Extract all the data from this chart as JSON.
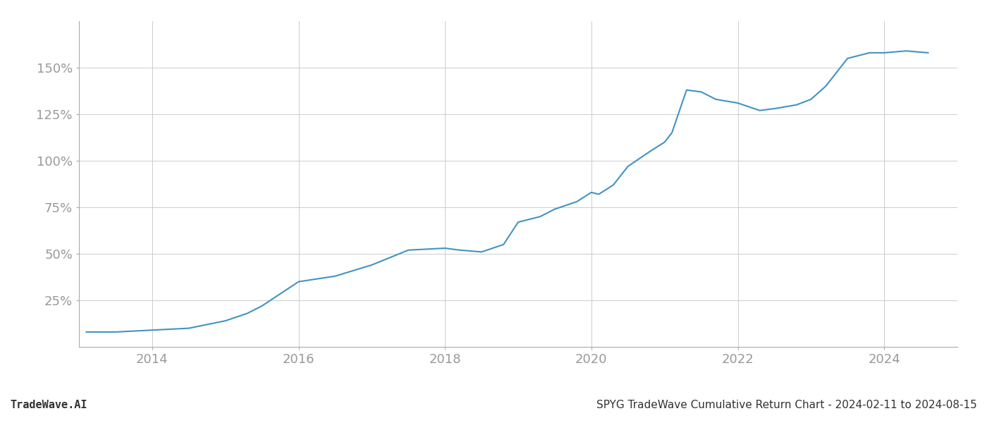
{
  "footer_left": "TradeWave.AI",
  "footer_right": "SPYG TradeWave Cumulative Return Chart - 2024-02-11 to 2024-08-15",
  "line_color": "#4393c3",
  "line_width": 1.5,
  "background_color": "#ffffff",
  "grid_color": "#cccccc",
  "x_years": [
    2013.1,
    2013.5,
    2014.0,
    2014.5,
    2015.0,
    2015.3,
    2015.5,
    2016.0,
    2016.5,
    2017.0,
    2017.5,
    2018.0,
    2018.2,
    2018.5,
    2018.8,
    2019.0,
    2019.3,
    2019.5,
    2019.8,
    2020.0,
    2020.1,
    2020.3,
    2020.5,
    2020.8,
    2021.0,
    2021.1,
    2021.3,
    2021.5,
    2021.7,
    2022.0,
    2022.3,
    2022.5,
    2022.8,
    2023.0,
    2023.2,
    2023.5,
    2023.8,
    2024.0,
    2024.3,
    2024.6
  ],
  "y_values": [
    8,
    8,
    9,
    10,
    14,
    18,
    22,
    35,
    38,
    44,
    52,
    53,
    52,
    51,
    55,
    67,
    70,
    74,
    78,
    83,
    82,
    87,
    97,
    105,
    110,
    115,
    138,
    137,
    133,
    131,
    127,
    128,
    130,
    133,
    140,
    155,
    158,
    158,
    159,
    158
  ],
  "xlim": [
    2013.0,
    2025.0
  ],
  "ylim": [
    0,
    175
  ],
  "yticks": [
    25,
    50,
    75,
    100,
    125,
    150
  ],
  "xticks": [
    2014,
    2016,
    2018,
    2020,
    2022,
    2024
  ],
  "tick_label_color": "#999999",
  "tick_fontsize": 13,
  "footer_fontsize": 11,
  "footer_left_color": "#333333",
  "footer_right_color": "#333333",
  "spine_color": "#aaaaaa"
}
